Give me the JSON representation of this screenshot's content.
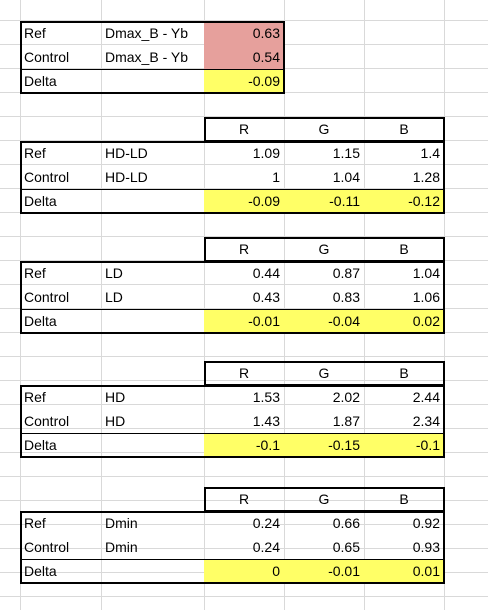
{
  "top": {
    "rows": [
      {
        "name": "Ref",
        "metric": "Dmax_B - Yb",
        "value": "0.63"
      },
      {
        "name": "Control",
        "metric": "Dmax_B - Yb",
        "value": "0.54"
      },
      {
        "name": "Delta",
        "metric": "",
        "value": "-0.09"
      }
    ]
  },
  "blocks": [
    {
      "headers": [
        "R",
        "G",
        "B"
      ],
      "rows": [
        {
          "name": "Ref",
          "metric": "HD-LD",
          "values": [
            "1.09",
            "1.15",
            "1.4"
          ]
        },
        {
          "name": "Control",
          "metric": "HD-LD",
          "values": [
            "1",
            "1.04",
            "1.28"
          ]
        },
        {
          "name": "Delta",
          "metric": "",
          "values": [
            "-0.09",
            "-0.11",
            "-0.12"
          ]
        }
      ]
    },
    {
      "headers": [
        "R",
        "G",
        "B"
      ],
      "rows": [
        {
          "name": "Ref",
          "metric": "LD",
          "values": [
            "0.44",
            "0.87",
            "1.04"
          ]
        },
        {
          "name": "Control",
          "metric": "LD",
          "values": [
            "0.43",
            "0.83",
            "1.06"
          ]
        },
        {
          "name": "Delta",
          "metric": "",
          "values": [
            "-0.01",
            "-0.04",
            "0.02"
          ]
        }
      ]
    },
    {
      "headers": [
        "R",
        "G",
        "B"
      ],
      "rows": [
        {
          "name": "Ref",
          "metric": "HD",
          "values": [
            "1.53",
            "2.02",
            "2.44"
          ]
        },
        {
          "name": "Control",
          "metric": "HD",
          "values": [
            "1.43",
            "1.87",
            "2.34"
          ]
        },
        {
          "name": "Delta",
          "metric": "",
          "values": [
            "-0.1",
            "-0.15",
            "-0.1"
          ]
        }
      ]
    },
    {
      "headers": [
        "R",
        "G",
        "B"
      ],
      "rows": [
        {
          "name": "Ref",
          "metric": "Dmin",
          "values": [
            "0.24",
            "0.66",
            "0.92"
          ]
        },
        {
          "name": "Control",
          "metric": "Dmin",
          "values": [
            "0.24",
            "0.65",
            "0.93"
          ]
        },
        {
          "name": "Delta",
          "metric": "",
          "values": [
            "0",
            "-0.01",
            "0.01"
          ]
        }
      ]
    }
  ],
  "colors": {
    "ref_fill": "#e6a09c",
    "delta_fill": "#ffff66",
    "gridline": "#d9d9d9",
    "border": "#000000"
  }
}
